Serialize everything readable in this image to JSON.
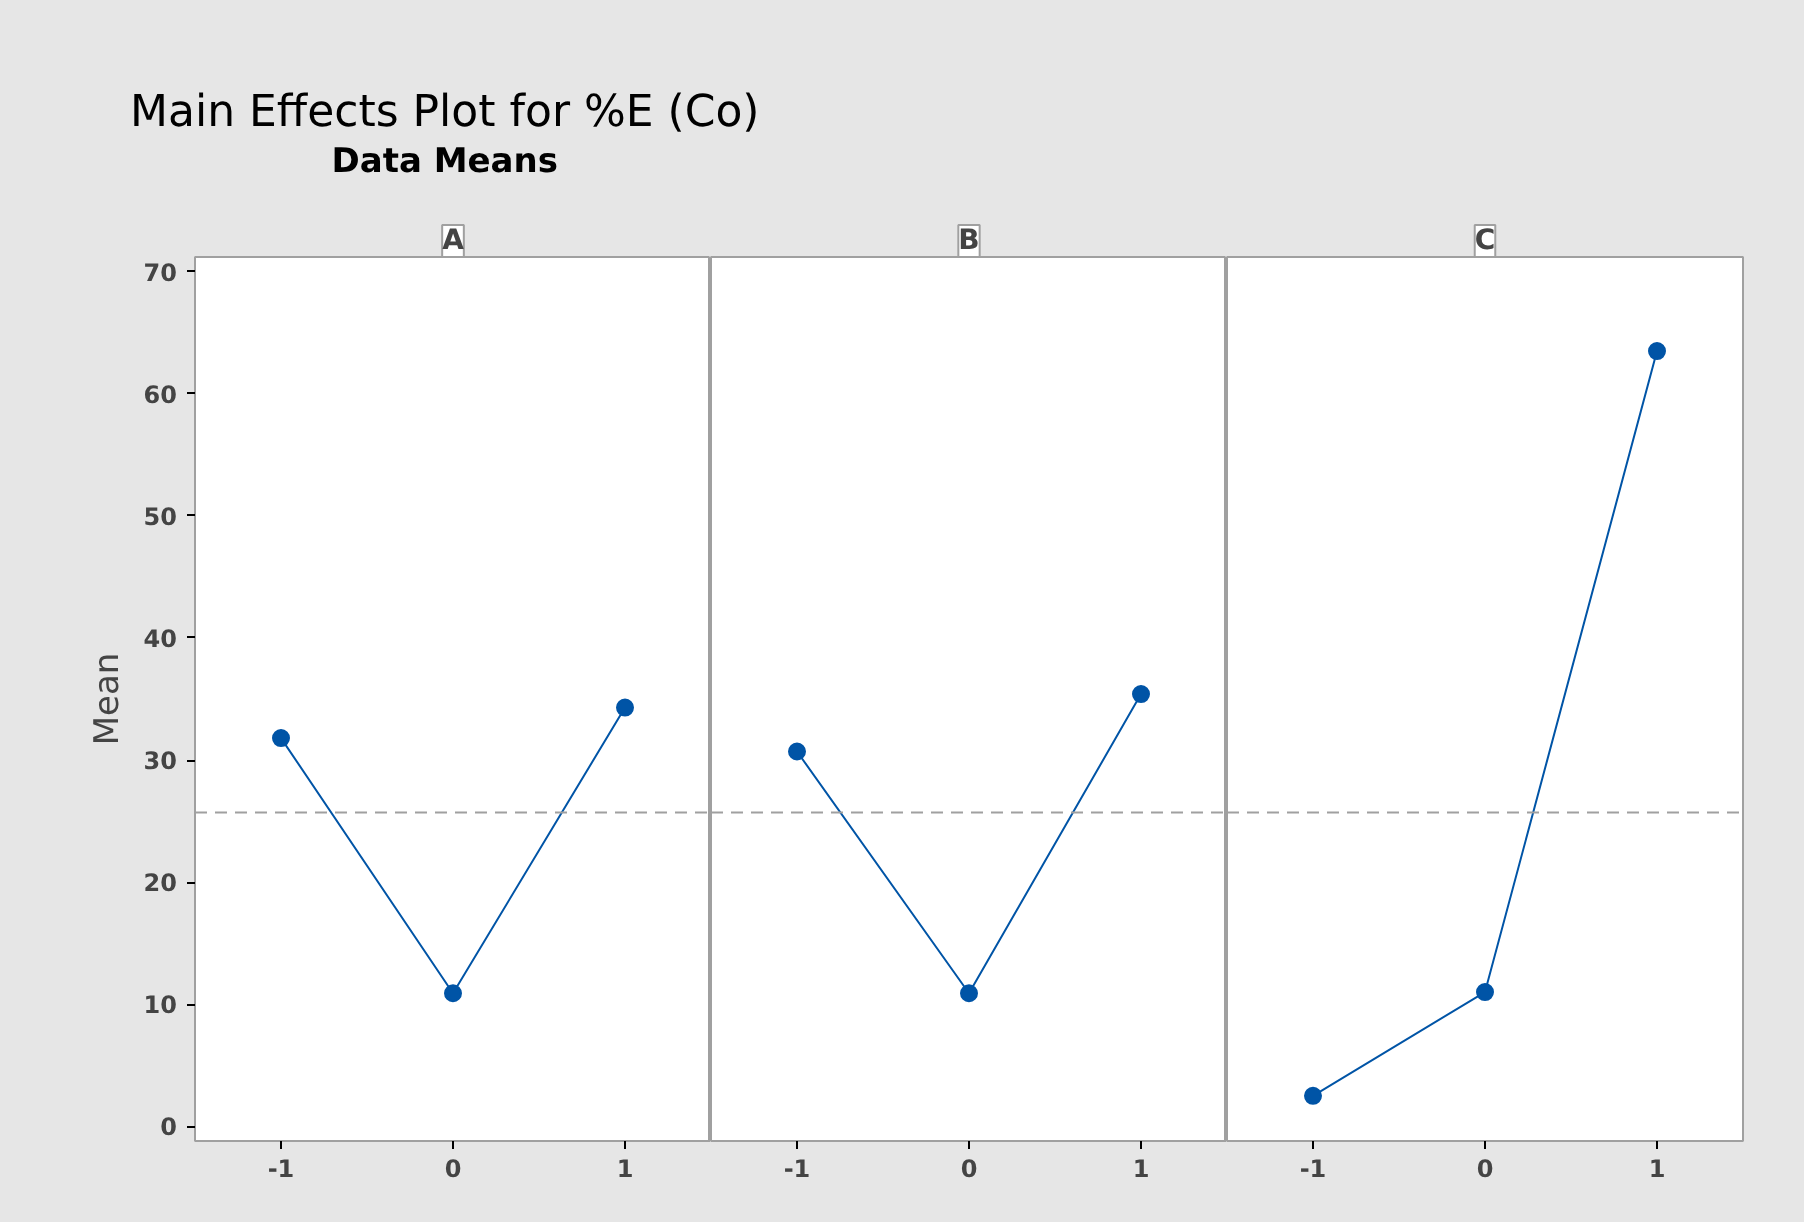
{
  "chart_data": [
    {
      "type": "line",
      "title": "A",
      "ylabel": "Mean",
      "annotations": [
        "Main Effects Plot for %E (Co)",
        "Data Means"
      ],
      "x": [
        -1,
        0,
        1
      ],
      "xlim": [
        -1.5,
        1.5
      ],
      "xticks": [
        -1,
        0,
        1
      ],
      "ylim": [
        -1.2,
        71.2
      ],
      "yticks": [
        0,
        10,
        20,
        30,
        40,
        50,
        60,
        70
      ],
      "grid": false,
      "marker": "circle",
      "line_style": "solid",
      "series": [
        {
          "color": "#0054a6",
          "values": [
            31.8,
            10.9,
            34.3
          ]
        }
      ],
      "ref_lines": [
        {
          "axis": "y",
          "value": 25.7,
          "color": "#a0a0a0",
          "line_style": "dashed"
        }
      ]
    },
    {
      "type": "line",
      "title": "B",
      "x": [
        -1,
        0,
        1
      ],
      "xlim": [
        -1.5,
        1.5
      ],
      "xticks": [
        -1,
        0,
        1
      ],
      "ylim": [
        -1.2,
        71.2
      ],
      "tick_labels": "x",
      "grid": false,
      "marker": "circle",
      "line_style": "solid",
      "series": [
        {
          "color": "#0054a6",
          "values": [
            30.7,
            10.9,
            35.4
          ]
        }
      ],
      "ref_lines": [
        {
          "axis": "y",
          "value": 25.7,
          "color": "#a0a0a0",
          "line_style": "dashed"
        }
      ]
    },
    {
      "type": "line",
      "title": "C",
      "x": [
        -1,
        0,
        1
      ],
      "xlim": [
        -1.5,
        1.5
      ],
      "xticks": [
        -1,
        0,
        1
      ],
      "ylim": [
        -1.2,
        71.2
      ],
      "tick_labels": "x",
      "grid": false,
      "marker": "circle",
      "line_style": "solid",
      "series": [
        {
          "color": "#0054a6",
          "values": [
            2.5,
            11.0,
            63.5
          ]
        }
      ],
      "ref_lines": [
        {
          "axis": "y",
          "value": 25.7,
          "color": "#a0a0a0",
          "line_style": "dashed"
        }
      ]
    }
  ]
}
